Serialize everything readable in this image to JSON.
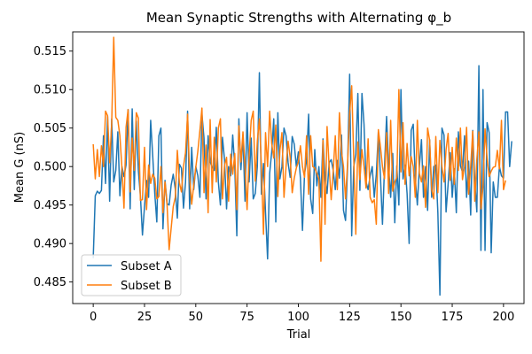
{
  "chart_data": {
    "type": "line",
    "title": "Mean Synaptic Strengths with Alternating φ_b",
    "xlabel": "Trial",
    "ylabel": "Mean G (nS)",
    "xlim": [
      -10,
      210
    ],
    "ylim": [
      0.4822,
      0.5175
    ],
    "xticks": [
      "0",
      "25",
      "50",
      "75",
      "100",
      "125",
      "150",
      "175",
      "200"
    ],
    "yticks": [
      "0.485",
      "0.490",
      "0.495",
      "0.500",
      "0.505",
      "0.510",
      "0.515"
    ],
    "grid": false,
    "legend_position": "lower-left",
    "series": [
      {
        "name": "Subset A",
        "color": "#1f77b4",
        "values": [
          0.4881,
          0.4962,
          0.4968,
          0.4965,
          0.4969,
          0.504,
          0.4978,
          0.5065,
          0.4955,
          0.5062,
          0.498,
          0.4995,
          0.5045,
          0.4962,
          0.5,
          0.4987,
          0.5002,
          0.5074,
          0.4945,
          0.5075,
          0.497,
          0.5059,
          0.4995,
          0.4962,
          0.4911,
          0.4948,
          0.4982,
          0.496,
          0.506,
          0.5014,
          0.4965,
          0.4928,
          0.504,
          0.505,
          0.4919,
          0.4982,
          0.4952,
          0.495,
          0.4976,
          0.499,
          0.4971,
          0.4933,
          0.5003,
          0.4998,
          0.4946,
          0.498,
          0.5072,
          0.4945,
          0.5025,
          0.497,
          0.5,
          0.4988,
          0.496,
          0.5068,
          0.5037,
          0.4958,
          0.504,
          0.5006,
          0.4999,
          0.4995,
          0.5051,
          0.498,
          0.495,
          0.5038,
          0.5009,
          0.4945,
          0.5,
          0.4988,
          0.5041,
          0.5,
          0.491,
          0.5062,
          0.4996,
          0.504,
          0.4955,
          0.507,
          0.498,
          0.5037,
          0.4958,
          0.4965,
          0.5,
          0.5122,
          0.4964,
          0.5004,
          0.494,
          0.488,
          0.4991,
          0.5019,
          0.5062,
          0.4928,
          0.507,
          0.4984,
          0.5,
          0.505,
          0.504,
          0.5005,
          0.4986,
          0.5039,
          0.5029,
          0.5,
          0.5019,
          0.4985,
          0.4917,
          0.499,
          0.5008,
          0.5068,
          0.4958,
          0.4939,
          0.5022,
          0.4975,
          0.5,
          0.496,
          0.5036,
          0.4985,
          0.4965,
          0.5005,
          0.5009,
          0.4995,
          0.497,
          0.5008,
          0.4985,
          0.5041,
          0.4943,
          0.493,
          0.5,
          0.512,
          0.491,
          0.5,
          0.5016,
          0.5095,
          0.4969,
          0.5095,
          0.5055,
          0.498,
          0.497,
          0.4988,
          0.5,
          0.496,
          0.499,
          0.5045,
          0.4988,
          0.4925,
          0.5,
          0.5065,
          0.5,
          0.496,
          0.5017,
          0.4927,
          0.5001,
          0.495,
          0.51,
          0.4984,
          0.5002,
          0.4965,
          0.49,
          0.5047,
          0.5055,
          0.4985,
          0.495,
          0.5,
          0.5035,
          0.496,
          0.5,
          0.4943,
          0.5035,
          0.496,
          0.5,
          0.5002,
          0.494,
          0.4833,
          0.505,
          0.5041,
          0.4941,
          0.4977,
          0.5018,
          0.496,
          0.4997,
          0.494,
          0.5045,
          0.5001,
          0.4993,
          0.504,
          0.496,
          0.5007,
          0.4937,
          0.5047,
          0.498,
          0.4941,
          0.5131,
          0.4891,
          0.51,
          0.4891,
          0.5057,
          0.5044,
          0.4888,
          0.498,
          0.496,
          0.496,
          0.5,
          0.4988,
          0.4985,
          0.5071,
          0.5071,
          0.5,
          0.5033
        ]
      },
      {
        "name": "Subset B",
        "color": "#ff7f0e",
        "values": [
          0.5029,
          0.4984,
          0.5022,
          0.4987,
          0.5027,
          0.5,
          0.5072,
          0.5066,
          0.5005,
          0.5056,
          0.5168,
          0.5064,
          0.506,
          0.504,
          0.4998,
          0.4946,
          0.5051,
          0.5074,
          0.4967,
          0.5037,
          0.4995,
          0.507,
          0.5063,
          0.4956,
          0.4957,
          0.5025,
          0.4944,
          0.5002,
          0.4978,
          0.499,
          0.4985,
          0.4958,
          0.4961,
          0.5,
          0.494,
          0.498,
          0.495,
          0.4892,
          0.492,
          0.4948,
          0.496,
          0.5021,
          0.4979,
          0.4967,
          0.5,
          0.5018,
          0.5068,
          0.4987,
          0.4951,
          0.4976,
          0.4999,
          0.502,
          0.5047,
          0.5076,
          0.4966,
          0.5028,
          0.494,
          0.5061,
          0.4966,
          0.5038,
          0.498,
          0.505,
          0.5062,
          0.4958,
          0.5001,
          0.5012,
          0.4955,
          0.5016,
          0.499,
          0.5017,
          0.4944,
          0.5053,
          0.5006,
          0.5045,
          0.5,
          0.4944,
          0.5015,
          0.506,
          0.5072,
          0.4981,
          0.5033,
          0.5062,
          0.5,
          0.4912,
          0.5044,
          0.5,
          0.5072,
          0.503,
          0.5011,
          0.5054,
          0.4961,
          0.5021,
          0.5044,
          0.496,
          0.5,
          0.5033,
          0.5012,
          0.4966,
          0.4985,
          0.4998,
          0.5006,
          0.5027,
          0.5,
          0.4986,
          0.504,
          0.4964,
          0.504,
          0.5,
          0.4998,
          0.4991,
          0.4984,
          0.4877,
          0.5034,
          0.4925,
          0.5052,
          0.5,
          0.4957,
          0.4995,
          0.504,
          0.497,
          0.507,
          0.502,
          0.5,
          0.4958,
          0.5004,
          0.5069,
          0.5105,
          0.5011,
          0.4912,
          0.5032,
          0.4983,
          0.5022,
          0.5,
          0.4972,
          0.5036,
          0.496,
          0.4953,
          0.4957,
          0.4925,
          0.5048,
          0.5026,
          0.5,
          0.4984,
          0.5044,
          0.4965,
          0.506,
          0.4968,
          0.498,
          0.4986,
          0.51,
          0.4993,
          0.5057,
          0.4977,
          0.503,
          0.4988,
          0.5013,
          0.5,
          0.496,
          0.506,
          0.4991,
          0.498,
          0.5001,
          0.4947,
          0.505,
          0.5034,
          0.497,
          0.4958,
          0.5039,
          0.4966,
          0.5034,
          0.5,
          0.498,
          0.5022,
          0.5043,
          0.4982,
          0.5025,
          0.4977,
          0.5037,
          0.4995,
          0.505,
          0.4983,
          0.5,
          0.5051,
          0.4964,
          0.5,
          0.5046,
          0.4955,
          0.5009,
          0.5045,
          0.4945,
          0.4973,
          0.5049,
          0.5011,
          0.4987,
          0.4994,
          0.4999,
          0.5,
          0.5021,
          0.4997,
          0.506,
          0.497,
          0.4982
        ]
      }
    ]
  }
}
